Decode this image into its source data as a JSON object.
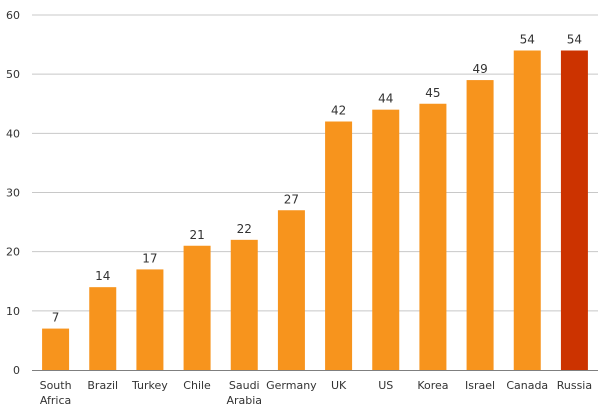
{
  "chart_data": {
    "type": "bar",
    "title": "",
    "xlabel": "",
    "ylabel": "",
    "ylim": [
      0,
      60
    ],
    "yticks": [
      0,
      10,
      20,
      30,
      40,
      50,
      60
    ],
    "grid": true,
    "categories": [
      [
        "South",
        "Africa"
      ],
      [
        "Brazil"
      ],
      [
        "Turkey"
      ],
      [
        "Chile"
      ],
      [
        "Saudi",
        "Arabia"
      ],
      [
        "Germany"
      ],
      [
        "UK"
      ],
      [
        "US"
      ],
      [
        "Korea"
      ],
      [
        "Israel"
      ],
      [
        "Canada"
      ],
      [
        "Russia"
      ]
    ],
    "values": [
      7,
      14,
      17,
      21,
      22,
      27,
      42,
      44,
      45,
      49,
      54,
      54
    ],
    "colors": {
      "default": "#f7941d",
      "highlight": "#cc3300"
    },
    "highlight_category": "Russia"
  }
}
